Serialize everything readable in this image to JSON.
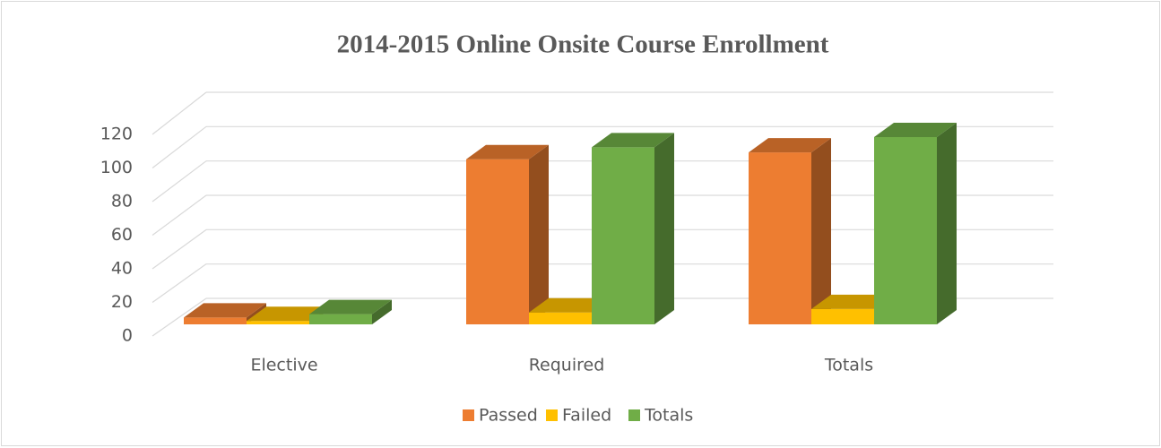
{
  "chart_data": {
    "type": "bar3d",
    "title": "2014-2015 Online Onsite Course Enrollment",
    "categories": [
      "Elective",
      "Required",
      "Totals"
    ],
    "series": [
      {
        "name": "Passed",
        "color": "#ed7d31",
        "values": [
          4,
          97,
          101
        ]
      },
      {
        "name": "Failed",
        "color": "#ffc000",
        "values": [
          2,
          7,
          9
        ]
      },
      {
        "name": "Totals",
        "color": "#70ad47",
        "values": [
          6,
          104,
          110
        ]
      }
    ],
    "ylim": [
      0,
      120
    ],
    "yticks": [
      0,
      20,
      40,
      60,
      80,
      100,
      120
    ],
    "grid": true,
    "legend": "bottom"
  }
}
